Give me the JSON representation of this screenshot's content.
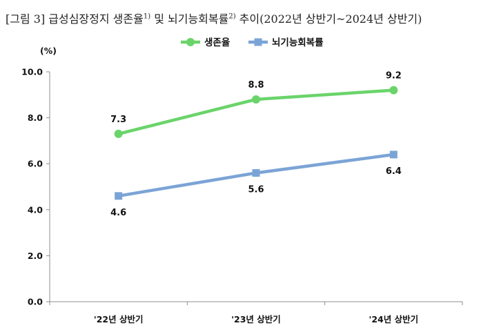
{
  "title": {
    "prefix": "[그림 3] 급성심장정지 생존율",
    "sup1": "1)",
    "mid": " 및 뇌기능회복률",
    "sup2": "2)",
    "suffix": " 추이(2022년 상반기~2024년 상반기)"
  },
  "chart_data": {
    "type": "line",
    "title": "[그림 3] 급성심장정지 생존율 및 뇌기능회복률 추이(2022년 상반기~2024년 상반기)",
    "ylabel": "(%)",
    "xlabel": "",
    "ylim": [
      0,
      10
    ],
    "yticks": [
      "0.0",
      "2.0",
      "4.0",
      "6.0",
      "8.0",
      "10.0"
    ],
    "categories": [
      "'22년 상반기",
      "'23년 상반기",
      "'24년 상반기"
    ],
    "series": [
      {
        "name": "생존율",
        "values": [
          7.3,
          8.8,
          9.2
        ],
        "labels": [
          "7.3",
          "8.8",
          "9.2"
        ],
        "color": "#6ad46a",
        "marker": "circle",
        "label_position": "above"
      },
      {
        "name": "뇌기능회복률",
        "values": [
          4.6,
          5.6,
          6.4
        ],
        "labels": [
          "4.6",
          "5.6",
          "6.4"
        ],
        "color": "#7ba4d6",
        "marker": "square",
        "label_position": "below"
      }
    ],
    "legend": "top-center",
    "grid": false
  }
}
